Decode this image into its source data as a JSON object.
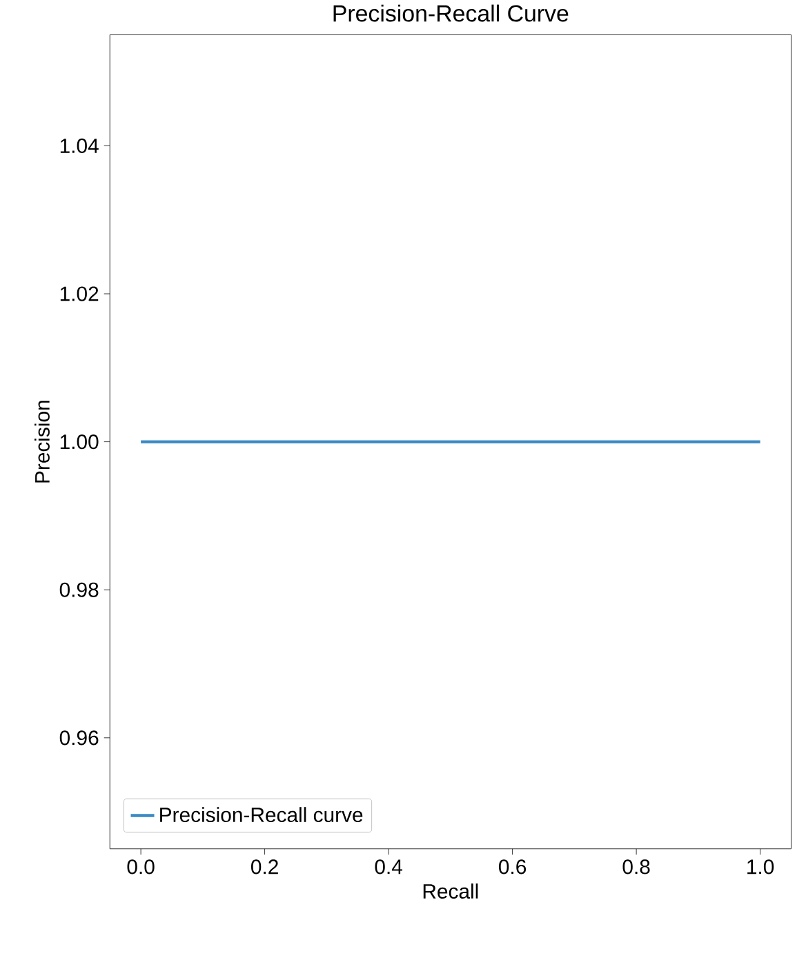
{
  "chart_data": {
    "type": "line",
    "title": "Precision-Recall Curve",
    "xlabel": "Recall",
    "ylabel": "Precision",
    "x": [
      0.0,
      1.0
    ],
    "series": [
      {
        "name": "Precision-Recall curve",
        "color": "#3a8ac4",
        "values": [
          1.0,
          1.0
        ]
      }
    ],
    "xlim": [
      -0.05,
      1.05
    ],
    "ylim": [
      0.945,
      1.055
    ],
    "xticks": [
      {
        "value": 0.0,
        "label": "0.0"
      },
      0.2,
      0.4,
      0.6,
      0.8,
      {
        "value": 1.0,
        "label": "1.0"
      }
    ],
    "yticks": [
      0.96,
      0.98,
      {
        "value": 1.0,
        "label": "1.00"
      },
      1.02,
      1.04
    ],
    "legend": "bottom left",
    "marker": "none",
    "line_style": "solid"
  }
}
